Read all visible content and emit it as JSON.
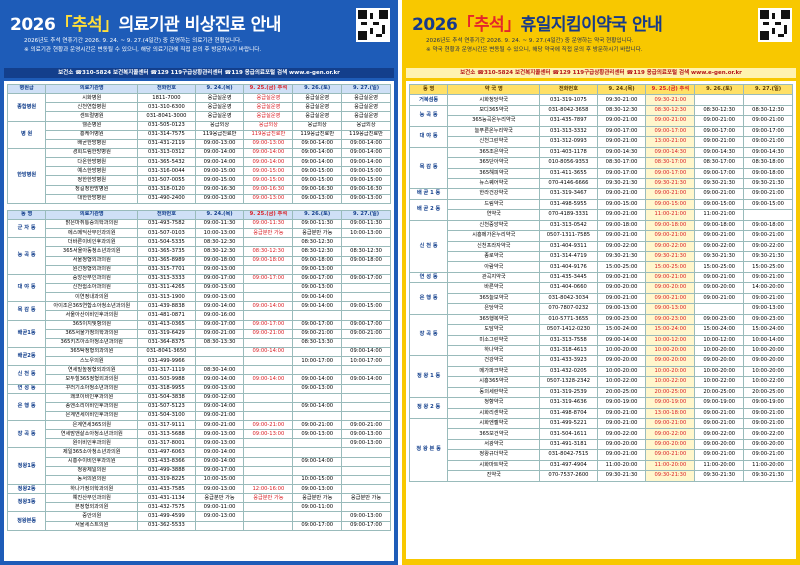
{
  "left": {
    "title": [
      "2026",
      "「추석」",
      "의료기관 비상진료 안내"
    ],
    "notices": [
      "2026년도 추석 연휴기간 2026. 9. 24. ~ 9. 27.(4일간) 중 운영하는 의료기관 현황입니다.",
      "※ 의료기관 현황과 운영시간은 변동될 수 있으니, 해당 의료기관에 직접 문의 후 방문하시기 바랍니다."
    ],
    "contacts": "보건소 ☎310-5824  보건복지콜센터 ☎129  119구급상황관리센터 ☎119  응급의료포털 검색 www.e-gen.or.kr",
    "hospital_table": {
      "headers": [
        "병원급",
        "의료기관명",
        "전화번호",
        "9. 24.(목)",
        "9. 25.(금) 추석",
        "9. 26.(토)",
        "9. 27.(일)"
      ],
      "groups": [
        {
          "label": "종합병원",
          "rows": [
            [
              "시화병원",
              "1811-7000",
              "응급실운영",
              "응급실운영",
              "응급실운영",
              "응급실운영"
            ],
            [
              "신천연합병원",
              "031-310-6300",
              "응급실운영",
              "응급실운영",
              "응급실운영",
              "응급실운영"
            ],
            [
              "센트럴병원",
              "031-8041-3000",
              "응급실운영",
              "응급실운영",
              "응급실운영",
              "응급실운영"
            ]
          ]
        },
        {
          "label": "병 원",
          "rows": [
            [
              "웰손병원",
              "031-505-0123",
              "응급외상",
              "응급외상",
              "응급외상",
              "응급외상"
            ],
            [
              "흥케어병원",
              "031-314-7575",
              "119응급진료만",
              "119응급진료만",
              "119응급진료만",
              "119응급진료만"
            ],
            [
              "배곧한방병원",
              "031-431-2119",
              "09:00-13:00",
              "09:00-13:00",
              "09:00-14:00",
              "09:00-14:00"
            ]
          ]
        },
        {
          "label": "한방병원",
          "rows": [
            [
              "경희드림한방병원",
              "031-313-0312",
              "09:00-14:00",
              "09:00-14:00",
              "09:00-14:00",
              "09:00-14:00"
            ],
            [
              "다온한방병원",
              "031-365-5432",
              "09:00-14:00",
              "09:00-14:00",
              "09:00-14:00",
              "09:00-14:00"
            ],
            [
              "예스한방병원",
              "031-316-0044",
              "09:00-15:00",
              "09:00-15:00",
              "09:00-15:00",
              "09:00-15:00"
            ],
            [
              "정한한방병원",
              "031-507-0055",
              "09:00-15:00",
              "09:00-15:00",
              "09:00-15:00",
              "09:00-15:00"
            ],
            [
              "정길정한방병원",
              "031-318-0120",
              "09:00-16:30",
              "09:00-16:30",
              "09:00-16:30",
              "09:00-16:30"
            ],
            [
              "대한한방병원",
              "031-490-2400",
              "09:00-13:00",
              "09:00-13:00",
              "09:00-13:00",
              "09:00-13:00"
            ]
          ]
        }
      ]
    },
    "clinic_table": {
      "headers": [
        "동 명",
        "의료기관명",
        "전화번호",
        "9. 24.(목)",
        "9. 25.(금) 추석",
        "9. 26.(토)",
        "9. 27.(일)"
      ],
      "groups": [
        {
          "label": "군 자 동",
          "rows": [
            [
              "밝은마취통증의학과의원",
              "031-493-7582",
              "09:00-11:30",
              "09:00-11:30",
              "09:00-11:30",
              "09:00-11:30"
            ],
            [
              "에스메딕산부인과의원",
              "031-507-0103",
              "10:00-13:00",
              "응급분만 가능",
              "응급분만 가능",
              "10:00-13:00"
            ]
          ]
        },
        {
          "label": "능 곡 동",
          "rows": [
            [
              "더바른이비인후과의원",
              "031-504-5335",
              "08:30-12:30",
              null,
              "08:30-12:30",
              null
            ],
            [
              "365서울아동청소년과의원",
              "031-365-3735",
              "08:30-12:30",
              "08:30-12:30",
              "08:30-12:30",
              "08:30-12:30"
            ],
            [
              "서울정형외과의원",
              "031-365-8989",
              "09:00-18:00",
              "09:00-18:00",
              "09:00-18:00",
              "09:00-18:00"
            ],
            [
              "원선정형외과의원",
              "031-315-7701",
              "09:00-13:00",
              null,
              "09:00-13:00",
              null
            ]
          ]
        },
        {
          "label": "대 야 동",
          "rows": [
            [
              "중앙산부인과의원",
              "031-313-3333",
              "09:00-17:00",
              "09:00-17:00",
              "09:00-17:00",
              "09:00-17:00"
            ],
            [
              "신천쉼소아과의원",
              "031-311-4265",
              "09:00-13:00",
              null,
              "09:00-13:00",
              null
            ],
            [
              "이연정내과의원",
              "031-313-1900",
              "09:00-13:00",
              null,
              "09:00-14:00",
              null
            ]
          ]
        },
        {
          "label": "목 감 동",
          "rows": [
            [
              "아이조은365연합소아청소년과의원",
              "031-439-8838",
              "09:00-14:00",
              "09:00-14:00",
              "09:00-14:00",
              "09:00-15:00"
            ],
            [
              "서울아산이비인후과의원",
              "031-481-0871",
              "09:00-16:00",
              null,
              null,
              null
            ]
          ]
        },
        {
          "label": "배곧1동",
          "rows": [
            [
              "365이지빛항의원",
              "031-413-0365",
              "09:00-17:00",
              "09:00-17:00",
              "09:00-17:00",
              "09:00-17:00"
            ],
            [
              "365서울가정의학과의원",
              "031-319-6429",
              "09:00-21:00",
              "09:00-21:00",
              "09:00-21:00",
              "09:00-21:00"
            ],
            [
              "365키즈아소아청소년과의원",
              "031-364-8375",
              "08:30-13:30",
              null,
              "08:30-13:30",
              null
            ]
          ]
        },
        {
          "label": "배곧2동",
          "rows": [
            [
              "365탁정형외과의원",
              "031-8041-3650",
              null,
              "09:00-14:00",
              null,
              "09:00-14:00"
            ],
            [
              "스노우의원",
              "031-499-9966",
              null,
              null,
              "10:00-17:00",
              "10:00-17:00"
            ]
          ]
        },
        {
          "label": "신 천 동",
          "rows": [
            [
              "연세밀높정형외과의원",
              "031-317-1119",
              "08:30-14:00",
              null,
              null,
              null
            ],
            [
              "모두힐365정형외과의원",
              "031-503-9988",
              "09:00-14:00",
              "09:00-14:00",
              "09:00-14:00",
              "09:00-14:00"
            ]
          ]
        },
        {
          "label": "연 성 동",
          "rows": [
            [
              "꾸러기소아청소년과의원",
              "031-318-9955",
              "09:00-13:00",
              null,
              "09:00-13:00",
              null
            ]
          ]
        },
        {
          "label": "은 행 동",
          "rows": [
            [
              "쾌코이비인후과의원",
              "031-504-3838",
              "09:00-12:00",
              null,
              null,
              null
            ],
            [
              "송엔소리이비인후과의원",
              "031-507-5123",
              "09:00-14:00",
              null,
              "09:00-14:00",
              null
            ],
            [
              "은계연세이비인후과의원",
              "031-504-3100",
              "09:00-21:00",
              null,
              null,
              null
            ]
          ]
        },
        {
          "label": "장 곡 동",
          "rows": [
            [
              "은계연세365의원",
              "031-317-9111",
              "09:00-21:00",
              "09:00-21:00",
              "09:00-21:00",
              "09:00-21:00"
            ],
            [
              "연세맘앤살소아청소년과의원",
              "031-313-5688",
              "09:00-13:00",
              "09:00-13:00",
              "09:00-13:00",
              "09:00-13:00"
            ],
            [
              "원이비인후과의원",
              "031-317-8001",
              "09:00-13:00",
              null,
              null,
              "09:00-13:00"
            ]
          ]
        },
        {
          "label": "정왕1동",
          "rows": [
            [
              "제일365소아청소년과의원",
              "031-497-6063",
              "09:00-14:00",
              null,
              null,
              null
            ],
            [
              "시흥수이비인후과의원",
              "031-433-8366",
              "09:00-14:00",
              null,
              "09:00-14:00",
              null
            ],
            [
              "정왕제일의원",
              "031-499-3888",
              "09:00-17:00",
              null,
              null,
              null
            ],
            [
              "동서의원의원",
              "031-319-8225",
              "10:00-15:00",
              null,
              "10:00-15:00",
              null
            ]
          ]
        },
        {
          "label": "정왕2동",
          "rows": [
            [
              "하나가정의학과의원",
              "031-433-7585",
              "09:00-13:00",
              "12:00-16:00",
              "09:00-13:00",
              null
            ]
          ]
        },
        {
          "label": "정왕3동",
          "rows": [
            [
              "예진산부인과의원",
              "031-431-1134",
              "응급분만 가능",
              "응급분만 가능",
              "응급분만 가능",
              "응급분만 가능"
            ],
            [
              "본정형외과의원",
              "031-432-7575",
              "09:00-11:00",
              null,
              "09:00-11:00",
              null
            ]
          ]
        },
        {
          "label": "정왕본동",
          "rows": [
            [
              "중안의원",
              "031-499-4599",
              "09:00-13:00",
              null,
              null,
              "09:00-13:00"
            ],
            [
              "서울세스트의원",
              "031-362-5533",
              null,
              null,
              "09:00-17:00",
              "09:00-17:00"
            ]
          ]
        }
      ]
    }
  },
  "right": {
    "title": [
      "2026",
      "「추석」",
      "휴일지킴이약국 안내"
    ],
    "notices": [
      "2026년도 추석 연휴기간 2026. 9. 24. ~ 9. 27.(4일간) 중 운영하는 약국 현황입니다.",
      "※ 약국 현황과 운영시간은 변동될 수 있으니, 해당 약국에 직접 문의 후 방문하시기 바랍니다."
    ],
    "contacts": "보건소 ☎310-5824  보건복지콜센터 ☎129  119구급상황관리센터 ☎119  응급의료포털 검색 www.e-gen.or.kr",
    "pharmacy_table": {
      "headers": [
        "동 명",
        "약 국 명",
        "전화번호",
        "9. 24.(목)",
        "9. 25.(금) 추석",
        "9. 26.(토)",
        "9. 27.(일)"
      ],
      "groups": [
        {
          "label": "거북섬동",
          "rows": [
            [
              "시화청당약국",
              "031-319-1075",
              "09:30-21:00",
              "09:30-21:00",
              null,
              null
            ]
          ]
        },
        {
          "label": "능 곡 동",
          "rows": [
            [
              "모디365약국",
              "031-8042-3658",
              "08:30-12:30",
              "08:30-12:30",
              "08:30-12:30",
              "08:30-12:30"
            ],
            [
              "365능곡온누리약국",
              "031-435-7897",
              "09:00-21:00",
              "09:00-21:00",
              "09:00-21:00",
              "09:00-21:00"
            ]
          ]
        },
        {
          "label": "대 야 동",
          "rows": [
            [
              "늘푸른온누리약국",
              "031-313-3332",
              "09:00-17:00",
              "09:00-17:00",
              "09:00-17:00",
              "09:00-17:00"
            ],
            [
              "신천그린약국",
              "031-312-0993",
              "09:00-21:00",
              "13:00-21:00",
              "09:00-21:00",
              "09:00-21:00"
            ]
          ]
        },
        {
          "label": "목 감 동",
          "rows": [
            [
              "365조은약국",
              "031-403-1178",
              "09:00-14:30",
              "09:00-14:30",
              "09:00-14:30",
              "09:00-14:30"
            ],
            [
              "365단아약국",
              "010-8056-9353",
              "08:30-17:00",
              "08:30-17:00",
              "08:30-17:00",
              "08:30-18:00"
            ],
            [
              "365해피약국",
              "031-411-3655",
              "09:00-17:00",
              "09:00-17:00",
              "09:00-17:00",
              "09:00-18:00"
            ],
            [
              "뉴스퀘어약국",
              "070-4146-6666",
              "09:30-21:30",
              "09:30-21:30",
              "09:30-21:30",
              "09:30-21:30"
            ]
          ]
        },
        {
          "label": "배 곧 1 동",
          "rows": [
            [
              "한라건강약국",
              "031-319-3467",
              "09:00-21:00",
              "09:00-21:00",
              "09:00-21:00",
              "09:00-21:00"
            ]
          ]
        },
        {
          "label": "배 곧 2 동",
          "rows": [
            [
              "드림약국",
              "031-498-5955",
              "09:00-15:00",
              "09:00-15:00",
              "09:00-15:00",
              "09:00-15:00"
            ],
            [
              "연약국",
              "070-4189-3331",
              "09:00-21:00",
              "11:00-21:00",
              "11:00-21:00",
              null
            ]
          ]
        },
        {
          "label": "신 천 동",
          "rows": [
            [
              "신천중앙약국",
              "031-313-0542",
              "09:00-18:00",
              "09:00-18:00",
              "09:00-18:00",
              "09:00-18:00"
            ],
            [
              "시흥메가온누리약국",
              "0507-1311-7585",
              "09:00-21:00",
              "09:00-21:00",
              "09:00-21:00",
              "09:00-21:00"
            ],
            [
              "신천프라자약국",
              "031-404-9311",
              "09:00-22:00",
              "09:00-22:00",
              "09:00-22:00",
              "09:00-22:00"
            ],
            [
              "종로약국",
              "031-314-4719",
              "09:30-21:30",
              "09:30-21:30",
              "09:30-21:30",
              "09:30-21:30"
            ],
            [
              "아람약국",
              "031-404-9176",
              "15:00-25:00",
              "15:00-25:00",
              "15:00-25:00",
              "15:00-25:00"
            ]
          ]
        },
        {
          "label": "연 성 동",
          "rows": [
            [
              "관곡지약국",
              "031-435-3445",
              "09:00-21:00",
              "09:00-21:00",
              "09:00-21:00",
              "09:00-21:00"
            ]
          ]
        },
        {
          "label": "은 행 동",
          "rows": [
            [
              "바른약국",
              "031-404-0660",
              "09:00-20:00",
              "09:00-20:00",
              "09:00-20:00",
              "14:00-20:00"
            ],
            [
              "365늘보약국",
              "031-8042-3034",
              "09:00-21:00",
              "09:00-21:00",
              "09:00-21:00",
              "09:00-21:00"
            ],
            [
              "은당약국",
              "070-7807-0232",
              "09:00-13:00",
              "09:00-13:00",
              null,
              "09:00-13:00"
            ]
          ]
        },
        {
          "label": "장 곡 동",
          "rows": [
            [
              "365행복약국",
              "010-5771-3655",
              "09:00-23:00",
              "09:00-23:00",
              "09:00-23:00",
              "09:00-23:00"
            ],
            [
              "도담약국",
              "0507-1412-0230",
              "15:00-24:00",
              "15:00-24:00",
              "15:00-24:00",
              "15:00-24:00"
            ],
            [
              "미소그린약국",
              "031-313-7558",
              "09:00-14:00",
              "10:00-12:00",
              "10:00-12:00",
              "10:00-14:00"
            ],
            [
              "하나약국",
              "031-318-4613",
              "10:00-20:00",
              "10:00-20:00",
              "10:00-20:00",
              "10:00-20:00"
            ]
          ]
        },
        {
          "label": "정 왕 1 동",
          "rows": [
            [
              "건강약국",
              "031-433-3923",
              "09:00-20:00",
              "09:00-20:00",
              "09:00-20:00",
              "09:00-20:00"
            ],
            [
              "메가파크약국",
              "031-432-0205",
              "10:00-20:00",
              "10:00-20:00",
              "10:00-20:00",
              "10:00-20:00"
            ],
            [
              "시흥365약국",
              "0507-1328-2342",
              "10:00-22:00",
              "10:00-22:00",
              "10:00-22:00",
              "10:00-22:00"
            ],
            [
              "동의세란약국",
              "031-319-2539",
              "20:00-25:00",
              "20:00-25:00",
              "20:00-25:00",
              "20:00-25:00"
            ]
          ]
        },
        {
          "label": "정 왕 2 동",
          "rows": [
            [
              "청향약국",
              "031-319-4636",
              "09:00-19:00",
              "09:00-19:00",
              "09:00-19:00",
              "09:00-19:00"
            ],
            [
              "시화리센약국",
              "031-498-8704",
              "09:00-21:00",
              "13:00-18:00",
              "09:00-21:00",
              "09:00-21:00"
            ]
          ]
        },
        {
          "label": "정 왕 본 동",
          "rows": [
            [
              "시화엔젤약국",
              "031-499-5221",
              "09:00-21:00",
              "09:00-21:00",
              "09:00-21:00",
              "09:00-21:00"
            ],
            [
              "365보건약국",
              "031-504-1611",
              "09:00-22:00",
              "09:00-22:00",
              "09:00-22:00",
              "09:00-22:00"
            ],
            [
              "서광약국",
              "031-491-3181",
              "09:00-20:00",
              "09:00-20:00",
              "09:00-20:00",
              "09:00-20:00"
            ],
            [
              "정왕규더약국",
              "031-8042-7515",
              "09:00-21:00",
              "09:00-21:00",
              "09:00-21:00",
              "09:00-21:00"
            ],
            [
              "시화마트약국",
              "031-497-4904",
              "11:00-20:00",
              "11:00-20:00",
              "11:00-20:00",
              "11:00-20:00"
            ],
            [
              "진약국",
              "070-7537-2600",
              "09:30-21:30",
              "09:30-21:30",
              "09:30-21:30",
              "09:30-21:30"
            ]
          ]
        }
      ]
    }
  }
}
